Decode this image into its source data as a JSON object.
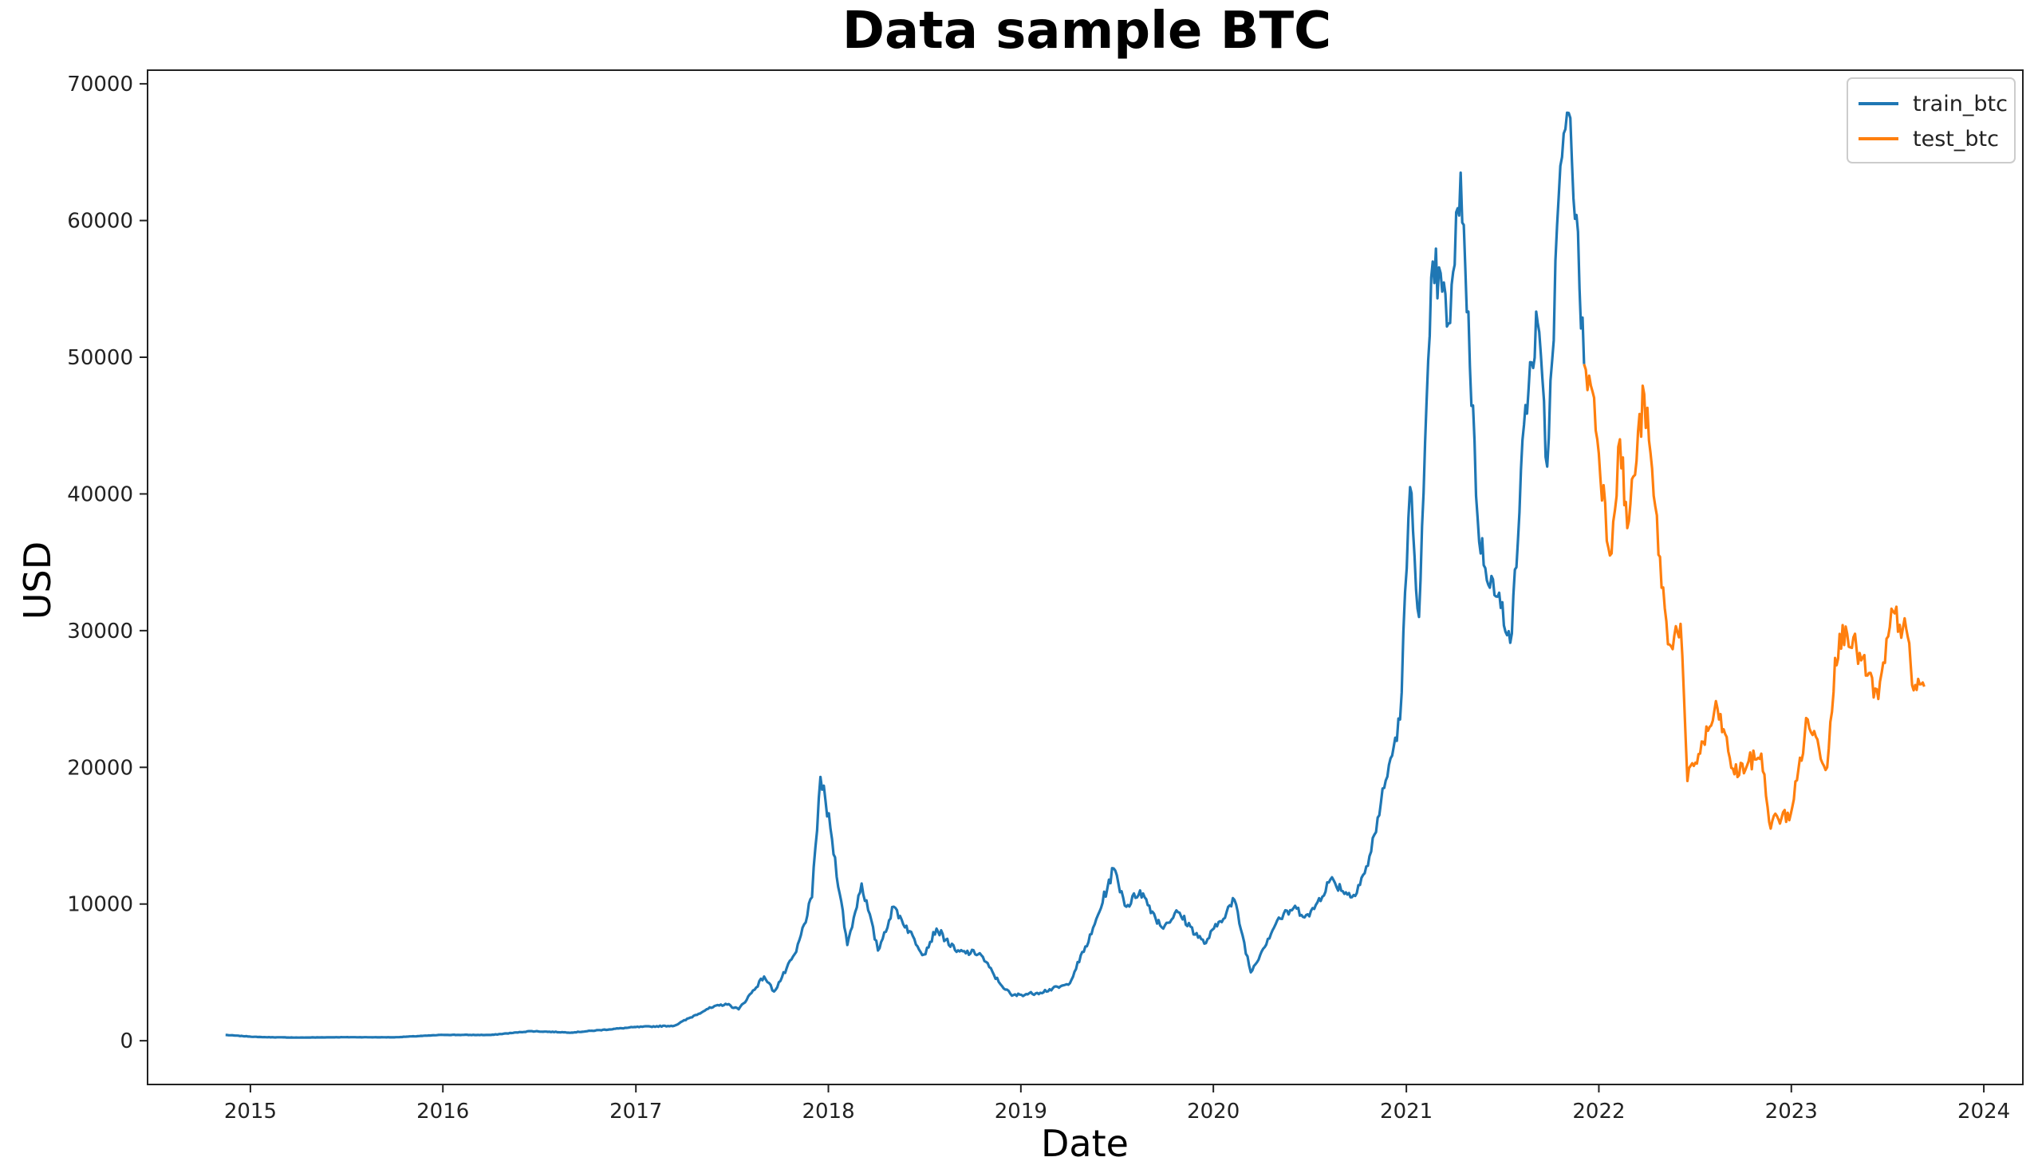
{
  "chart_data": {
    "type": "line",
    "title": "Data sample BTC",
    "xlabel": "Date",
    "ylabel": "USD",
    "xlim": [
      "2014-06-20",
      "2024-03-15"
    ],
    "ylim": [
      -3200,
      71000
    ],
    "x_ticks": [
      "2015",
      "2016",
      "2017",
      "2018",
      "2019",
      "2020",
      "2021",
      "2022",
      "2023",
      "2024"
    ],
    "y_ticks": [
      0,
      10000,
      20000,
      30000,
      40000,
      50000,
      60000,
      70000
    ],
    "grid": false,
    "legend_position": "top-right",
    "series": [
      {
        "name": "train_btc",
        "color": "#1f77b4",
        "points": [
          [
            "2014-11-15",
            420
          ],
          [
            "2015-01-15",
            270
          ],
          [
            "2015-04-01",
            230
          ],
          [
            "2015-07-01",
            260
          ],
          [
            "2015-10-01",
            250
          ],
          [
            "2016-01-01",
            430
          ],
          [
            "2016-04-01",
            420
          ],
          [
            "2016-06-15",
            700
          ],
          [
            "2016-09-01",
            600
          ],
          [
            "2017-01-01",
            1000
          ],
          [
            "2017-03-15",
            1100
          ],
          [
            "2017-05-15",
            2300
          ],
          [
            "2017-06-20",
            2700
          ],
          [
            "2017-07-15",
            2300
          ],
          [
            "2017-09-01",
            4700
          ],
          [
            "2017-09-20",
            3600
          ],
          [
            "2017-11-01",
            6500
          ],
          [
            "2017-12-01",
            10500
          ],
          [
            "2017-12-17",
            19300
          ],
          [
            "2018-01-05",
            15500
          ],
          [
            "2018-02-06",
            7000
          ],
          [
            "2018-03-05",
            11500
          ],
          [
            "2018-04-05",
            6600
          ],
          [
            "2018-05-05",
            9800
          ],
          [
            "2018-07-01",
            6300
          ],
          [
            "2018-07-25",
            8200
          ],
          [
            "2018-09-01",
            6500
          ],
          [
            "2018-10-15",
            6400
          ],
          [
            "2018-11-20",
            4300
          ],
          [
            "2018-12-15",
            3300
          ],
          [
            "2019-02-01",
            3500
          ],
          [
            "2019-04-01",
            4100
          ],
          [
            "2019-05-15",
            7800
          ],
          [
            "2019-06-26",
            12600
          ],
          [
            "2019-07-20",
            9800
          ],
          [
            "2019-08-15",
            11000
          ],
          [
            "2019-09-25",
            8300
          ],
          [
            "2019-10-26",
            9400
          ],
          [
            "2019-12-15",
            7100
          ],
          [
            "2020-02-10",
            10300
          ],
          [
            "2020-03-12",
            5000
          ],
          [
            "2020-05-01",
            8800
          ],
          [
            "2020-06-01",
            9700
          ],
          [
            "2020-07-01",
            9100
          ],
          [
            "2020-08-10",
            11800
          ],
          [
            "2020-09-20",
            10500
          ],
          [
            "2020-10-20",
            12800
          ],
          [
            "2020-11-20",
            18500
          ],
          [
            "2020-12-20",
            23500
          ],
          [
            "2021-01-08",
            40500
          ],
          [
            "2021-01-25",
            31000
          ],
          [
            "2021-02-20",
            57000
          ],
          [
            "2021-03-25",
            52500
          ],
          [
            "2021-04-14",
            63500
          ],
          [
            "2021-05-19",
            36500
          ],
          [
            "2021-06-20",
            32500
          ],
          [
            "2021-07-20",
            29800
          ],
          [
            "2021-08-15",
            46500
          ],
          [
            "2021-09-07",
            52500
          ],
          [
            "2021-09-25",
            42000
          ],
          [
            "2021-10-20",
            64000
          ],
          [
            "2021-11-08",
            67500
          ],
          [
            "2021-12-04",
            49500
          ]
        ]
      },
      {
        "name": "test_btc",
        "color": "#ff7f0e",
        "points": [
          [
            "2021-12-04",
            49500
          ],
          [
            "2021-12-20",
            47500
          ],
          [
            "2022-01-22",
            35500
          ],
          [
            "2022-02-10",
            44000
          ],
          [
            "2022-02-24",
            37500
          ],
          [
            "2022-03-28",
            47300
          ],
          [
            "2022-05-12",
            29000
          ],
          [
            "2022-06-05",
            30500
          ],
          [
            "2022-06-18",
            19000
          ],
          [
            "2022-08-14",
            24300
          ],
          [
            "2022-09-15",
            19500
          ],
          [
            "2022-11-05",
            21000
          ],
          [
            "2022-11-20",
            16000
          ],
          [
            "2022-12-31",
            16600
          ],
          [
            "2023-02-01",
            23500
          ],
          [
            "2023-03-10",
            20000
          ],
          [
            "2023-03-25",
            28000
          ],
          [
            "2023-04-14",
            30300
          ],
          [
            "2023-06-15",
            25000
          ],
          [
            "2023-07-13",
            31400
          ],
          [
            "2023-08-10",
            29500
          ],
          [
            "2023-08-18",
            26000
          ],
          [
            "2023-09-10",
            25900
          ]
        ]
      }
    ]
  }
}
